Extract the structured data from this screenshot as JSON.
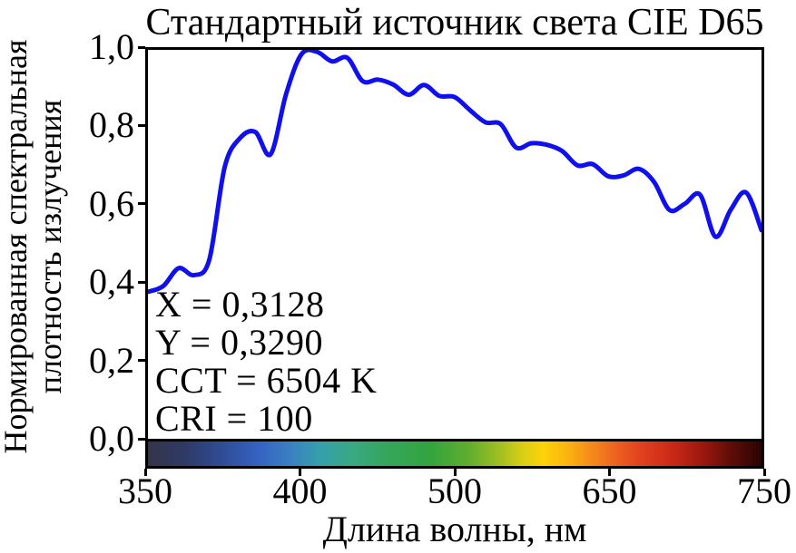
{
  "chart_data": {
    "type": "line",
    "title": "Стандартный источник света CIE D65",
    "xlabel": "Длина волны, нм",
    "ylabel_lines": [
      "Нормированная спектральная",
      "плотность излучения"
    ],
    "ylabel": "Нормированная спектральная плотность излучения",
    "x_tick_labels": [
      "350",
      "400",
      "500",
      "650",
      "750"
    ],
    "y_tick_labels": [
      "1,0",
      "0,8",
      "0,6",
      "0,4",
      "0,2",
      "0,0"
    ],
    "y_tick_values": [
      1.0,
      0.8,
      0.6,
      0.4,
      0.2,
      0.0
    ],
    "xlim": [
      350,
      750
    ],
    "ylim": [
      0,
      1
    ],
    "grid": false,
    "legend": null,
    "annotations": [
      "X = 0,3128",
      "Y = 0,3290",
      "CCT = 6504 K",
      "CRI = 100"
    ],
    "series": [
      {
        "name": "Нормированная спектральная плотность излучения D65",
        "color": "#1010ee",
        "x": [
          350,
          360,
          370,
          380,
          390,
          400,
          410,
          420,
          430,
          440,
          450,
          460,
          470,
          480,
          490,
          500,
          510,
          520,
          530,
          540,
          550,
          560,
          570,
          580,
          590,
          600,
          610,
          620,
          630,
          640,
          650,
          660,
          670,
          680,
          690,
          700,
          710,
          720,
          730,
          740,
          750
        ],
        "y": [
          0.381,
          0.396,
          0.442,
          0.424,
          0.464,
          0.702,
          0.777,
          0.793,
          0.736,
          0.89,
          0.993,
          1.0,
          0.975,
          0.984,
          0.924,
          0.928,
          0.915,
          0.889,
          0.914,
          0.886,
          0.883,
          0.849,
          0.818,
          0.813,
          0.753,
          0.764,
          0.76,
          0.744,
          0.707,
          0.71,
          0.679,
          0.681,
          0.698,
          0.664,
          0.592,
          0.608,
          0.631,
          0.523,
          0.593,
          0.637,
          0.54
        ]
      }
    ],
    "spectrum_bar_stops": [
      [
        0.0,
        "#35354a"
      ],
      [
        0.06,
        "#2e3a66"
      ],
      [
        0.12,
        "#2f4c95"
      ],
      [
        0.18,
        "#3562c2"
      ],
      [
        0.23,
        "#3a7fc2"
      ],
      [
        0.28,
        "#35a0ab"
      ],
      [
        0.33,
        "#38a884"
      ],
      [
        0.39,
        "#35a65b"
      ],
      [
        0.46,
        "#33a43e"
      ],
      [
        0.52,
        "#5dad2f"
      ],
      [
        0.57,
        "#9cbe22"
      ],
      [
        0.61,
        "#d8cf15"
      ],
      [
        0.645,
        "#fdd208"
      ],
      [
        0.68,
        "#fbb70f"
      ],
      [
        0.72,
        "#f68d1a"
      ],
      [
        0.76,
        "#ee6420"
      ],
      [
        0.8,
        "#e2431f"
      ],
      [
        0.85,
        "#cd2b18"
      ],
      [
        0.9,
        "#a0190f"
      ],
      [
        0.95,
        "#5f0d08"
      ],
      [
        1.0,
        "#2a0404"
      ]
    ]
  }
}
